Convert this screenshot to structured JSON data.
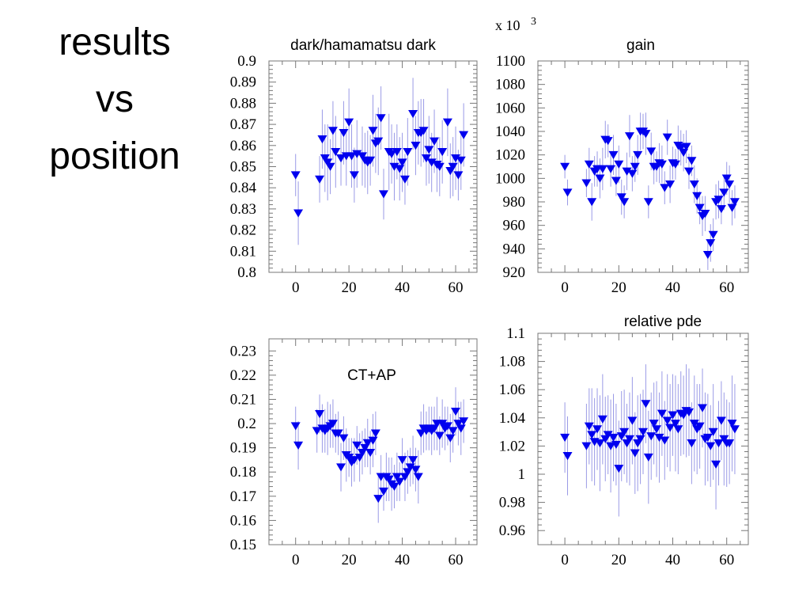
{
  "slide_title": [
    "results",
    "vs",
    "position"
  ],
  "colors": {
    "marker": "#0000ee",
    "errorbar": "#9a9ae6",
    "frame": "#777777"
  },
  "chart_data": [
    {
      "type": "scatter",
      "title": "dark/hamamatsu dark",
      "exponent_label": "",
      "xlim": [
        -10,
        68
      ],
      "ylim": [
        0.8,
        0.9
      ],
      "xticks": [
        0,
        20,
        40,
        60
      ],
      "xtick_labels": [
        "0",
        "20",
        "40",
        "60"
      ],
      "yticks": [
        0.8,
        0.81,
        0.82,
        0.83,
        0.84,
        0.85,
        0.86,
        0.87,
        0.88,
        0.89,
        0.9
      ],
      "ytick_labels": [
        "0.8",
        "0.81",
        "0.82",
        "0.83",
        "0.84",
        "0.85",
        "0.86",
        "0.87",
        "0.88",
        "0.89",
        "0.9"
      ],
      "grid": false,
      "x": [
        0,
        1,
        9,
        10,
        11,
        12,
        13,
        14,
        15,
        17,
        18,
        19,
        20,
        21,
        22,
        23,
        25,
        26,
        27,
        28,
        29,
        30,
        31,
        32,
        33,
        35,
        36,
        37,
        38,
        39,
        40,
        41,
        42,
        44,
        45,
        46,
        47,
        48,
        49,
        50,
        51,
        52,
        53,
        54,
        55,
        57,
        58,
        59,
        60,
        61,
        62,
        63
      ],
      "y": [
        0.846,
        0.828,
        0.844,
        0.863,
        0.854,
        0.852,
        0.85,
        0.867,
        0.857,
        0.854,
        0.866,
        0.855,
        0.871,
        0.855,
        0.846,
        0.856,
        0.855,
        0.853,
        0.852,
        0.853,
        0.867,
        0.861,
        0.862,
        0.873,
        0.837,
        0.857,
        0.856,
        0.85,
        0.857,
        0.849,
        0.852,
        0.844,
        0.857,
        0.875,
        0.86,
        0.866,
        0.866,
        0.867,
        0.854,
        0.858,
        0.852,
        0.862,
        0.851,
        0.85,
        0.857,
        0.871,
        0.848,
        0.85,
        0.854,
        0.846,
        0.853,
        0.865
      ],
      "yerr": [
        0.01,
        0.015,
        0.011,
        0.014,
        0.016,
        0.018,
        0.013,
        0.014,
        0.017,
        0.013,
        0.015,
        0.014,
        0.016,
        0.015,
        0.013,
        0.016,
        0.014,
        0.013,
        0.015,
        0.012,
        0.017,
        0.014,
        0.016,
        0.015,
        0.012,
        0.018,
        0.014,
        0.016,
        0.013,
        0.015,
        0.014,
        0.012,
        0.016,
        0.017,
        0.014,
        0.015,
        0.016,
        0.015,
        0.013,
        0.016,
        0.014,
        0.015,
        0.013,
        0.014,
        0.015,
        0.016,
        0.013,
        0.014,
        0.015,
        0.012,
        0.014,
        0.015
      ]
    },
    {
      "type": "scatter",
      "title": "gain",
      "exponent_label": "x 10",
      "exponent_power": "3",
      "xlim": [
        -10,
        68
      ],
      "ylim": [
        920,
        1100
      ],
      "xticks": [
        0,
        20,
        40,
        60
      ],
      "xtick_labels": [
        "0",
        "20",
        "40",
        "60"
      ],
      "yticks": [
        920,
        940,
        960,
        980,
        1000,
        1020,
        1040,
        1060,
        1080,
        1100
      ],
      "ytick_labels": [
        "920",
        "940",
        "960",
        "980",
        "1000",
        "1020",
        "1040",
        "1060",
        "1080",
        "1100"
      ],
      "grid": false,
      "x": [
        0,
        1,
        8,
        9,
        10,
        11,
        12,
        13,
        14,
        15,
        16,
        17,
        18,
        19,
        20,
        21,
        22,
        23,
        24,
        25,
        26,
        27,
        28,
        29,
        30,
        31,
        32,
        33,
        34,
        35,
        36,
        37,
        38,
        39,
        40,
        41,
        42,
        43,
        44,
        45,
        46,
        47,
        48,
        49,
        50,
        51,
        52,
        53,
        54,
        55,
        56,
        57,
        58,
        59,
        60,
        61,
        62,
        63
      ],
      "y": [
        1010,
        988,
        996,
        1012,
        980,
        1006,
        1008,
        1000,
        1008,
        1033,
        1032,
        1008,
        1020,
        998,
        1012,
        984,
        980,
        1006,
        1036,
        1004,
        1010,
        1020,
        1040,
        1040,
        1038,
        980,
        1023,
        1010,
        1010,
        1013,
        1012,
        992,
        1035,
        995,
        1013,
        1012,
        1028,
        1026,
        1022,
        1027,
        1006,
        1015,
        995,
        985,
        975,
        968,
        970,
        935,
        945,
        952,
        980,
        982,
        974,
        988,
        1000,
        995,
        975,
        980
      ],
      "yerr": [
        10,
        11,
        12,
        14,
        16,
        13,
        15,
        17,
        18,
        16,
        14,
        15,
        17,
        13,
        16,
        15,
        14,
        16,
        18,
        15,
        13,
        17,
        16,
        15,
        18,
        14,
        16,
        15,
        13,
        17,
        16,
        14,
        15,
        16,
        14,
        13,
        17,
        15,
        16,
        14,
        15,
        13,
        16,
        15,
        14,
        17,
        15,
        13,
        16,
        14,
        15,
        16,
        13,
        15,
        14,
        16,
        15,
        14
      ]
    },
    {
      "type": "scatter",
      "title": "CT+AP",
      "exponent_label": "",
      "xlim": [
        -10,
        68
      ],
      "ylim": [
        0.15,
        0.235
      ],
      "xticks": [
        0,
        20,
        40,
        60
      ],
      "xtick_labels": [
        "0",
        "20",
        "40",
        "60"
      ],
      "yticks": [
        0.15,
        0.16,
        0.17,
        0.18,
        0.19,
        0.2,
        0.21,
        0.22,
        0.23
      ],
      "ytick_labels": [
        "0.15",
        "0.16",
        "0.17",
        "0.18",
        "0.19",
        "0.2",
        "0.21",
        "0.22",
        "0.23"
      ],
      "grid": false,
      "x": [
        0,
        1,
        8,
        9,
        10,
        11,
        12,
        13,
        14,
        15,
        16,
        17,
        18,
        19,
        20,
        21,
        22,
        23,
        24,
        25,
        26,
        27,
        28,
        29,
        30,
        31,
        32,
        33,
        34,
        35,
        36,
        37,
        38,
        39,
        40,
        41,
        42,
        43,
        44,
        45,
        46,
        47,
        48,
        49,
        50,
        51,
        52,
        53,
        54,
        55,
        56,
        57,
        58,
        59,
        60,
        61,
        62,
        63
      ],
      "y": [
        0.199,
        0.191,
        0.197,
        0.204,
        0.198,
        0.197,
        0.198,
        0.199,
        0.2,
        0.196,
        0.196,
        0.182,
        0.194,
        0.187,
        0.186,
        0.184,
        0.185,
        0.191,
        0.186,
        0.188,
        0.19,
        0.192,
        0.188,
        0.193,
        0.196,
        0.169,
        0.178,
        0.172,
        0.178,
        0.177,
        0.175,
        0.174,
        0.178,
        0.176,
        0.185,
        0.178,
        0.18,
        0.182,
        0.185,
        0.181,
        0.178,
        0.196,
        0.198,
        0.197,
        0.198,
        0.197,
        0.198,
        0.2,
        0.195,
        0.2,
        0.198,
        0.199,
        0.194,
        0.197,
        0.205,
        0.2,
        0.198,
        0.201
      ],
      "yerr": [
        0.008,
        0.01,
        0.009,
        0.008,
        0.01,
        0.009,
        0.011,
        0.009,
        0.01,
        0.008,
        0.009,
        0.01,
        0.009,
        0.011,
        0.008,
        0.01,
        0.009,
        0.008,
        0.01,
        0.009,
        0.008,
        0.01,
        0.009,
        0.011,
        0.009,
        0.01,
        0.009,
        0.008,
        0.01,
        0.009,
        0.011,
        0.009,
        0.01,
        0.008,
        0.009,
        0.01,
        0.009,
        0.008,
        0.01,
        0.009,
        0.011,
        0.009,
        0.01,
        0.008,
        0.009,
        0.01,
        0.009,
        0.011,
        0.008,
        0.01,
        0.009,
        0.008,
        0.01,
        0.009,
        0.01,
        0.009,
        0.011,
        0.009
      ]
    },
    {
      "type": "scatter",
      "title": "relative pde",
      "exponent_label": "",
      "xlim": [
        -10,
        68
      ],
      "ylim": [
        0.95,
        1.1
      ],
      "xticks": [
        0,
        20,
        40,
        60
      ],
      "xtick_labels": [
        "0",
        "20",
        "40",
        "60"
      ],
      "yticks": [
        0.96,
        0.98,
        1.0,
        1.02,
        1.04,
        1.06,
        1.08,
        1.1
      ],
      "ytick_labels": [
        "0.96",
        "0.98",
        "1",
        "1.02",
        "1.04",
        "1.06",
        "1.08",
        "1.1"
      ],
      "grid": false,
      "x": [
        0,
        1,
        8,
        9,
        10,
        11,
        12,
        13,
        14,
        15,
        16,
        17,
        18,
        19,
        20,
        21,
        22,
        23,
        24,
        25,
        26,
        27,
        28,
        29,
        30,
        31,
        32,
        33,
        34,
        35,
        36,
        37,
        38,
        39,
        40,
        41,
        42,
        43,
        44,
        45,
        46,
        47,
        48,
        49,
        50,
        51,
        52,
        53,
        54,
        55,
        56,
        57,
        58,
        59,
        60,
        61,
        62,
        63
      ],
      "y": [
        1.026,
        1.013,
        1.02,
        1.034,
        1.028,
        1.023,
        1.032,
        1.022,
        1.039,
        1.025,
        1.028,
        1.02,
        1.026,
        1.021,
        1.004,
        1.027,
        1.03,
        1.022,
        1.025,
        1.038,
        1.015,
        1.022,
        1.025,
        1.03,
        1.05,
        1.012,
        1.027,
        1.036,
        1.032,
        1.026,
        1.043,
        1.024,
        1.038,
        1.033,
        1.042,
        1.036,
        1.032,
        1.043,
        1.042,
        1.045,
        1.044,
        1.022,
        1.036,
        1.032,
        1.034,
        1.047,
        1.025,
        1.026,
        1.02,
        1.03,
        1.007,
        1.022,
        1.038,
        1.025,
        1.022,
        1.022,
        1.036,
        1.032
      ],
      "yerr": [
        0.025,
        0.028,
        0.03,
        0.027,
        0.033,
        0.031,
        0.029,
        0.034,
        0.032,
        0.03,
        0.028,
        0.033,
        0.031,
        0.029,
        0.034,
        0.032,
        0.03,
        0.028,
        0.033,
        0.031,
        0.029,
        0.034,
        0.032,
        0.03,
        0.028,
        0.033,
        0.031,
        0.029,
        0.034,
        0.032,
        0.03,
        0.028,
        0.033,
        0.031,
        0.029,
        0.034,
        0.032,
        0.03,
        0.028,
        0.033,
        0.031,
        0.029,
        0.034,
        0.032,
        0.03,
        0.028,
        0.033,
        0.031,
        0.029,
        0.034,
        0.032,
        0.03,
        0.028,
        0.033,
        0.031,
        0.029,
        0.034,
        0.032
      ]
    }
  ]
}
